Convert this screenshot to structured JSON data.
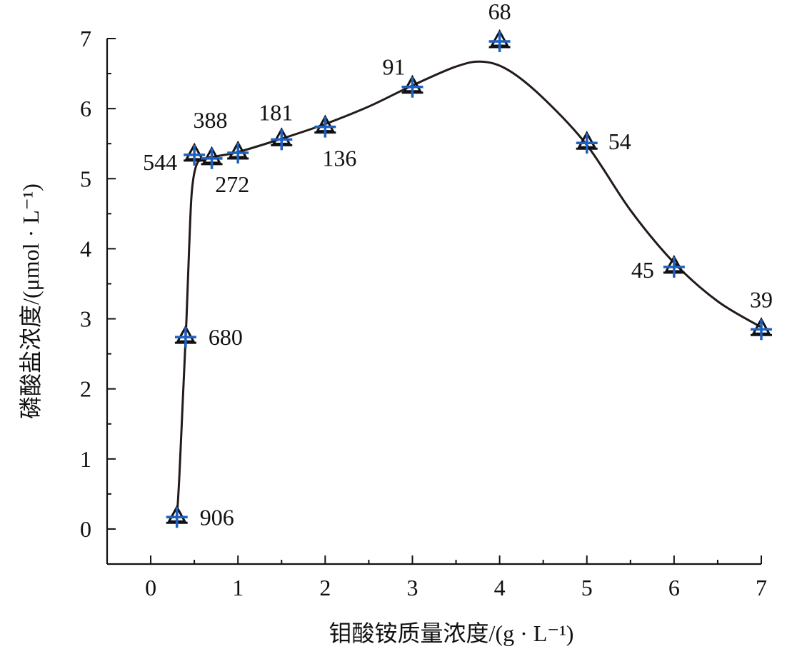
{
  "chart_data": {
    "type": "scatter",
    "xlabel": "钼酸铵质量浓度/(g · L⁻¹)",
    "ylabel": "磷酸盐浓度/(μmol · L⁻¹)",
    "xlim": [
      -0.5,
      7
    ],
    "ylim": [
      -0.5,
      7
    ],
    "x_ticks": [
      "0",
      "1",
      "2",
      "3",
      "4",
      "5",
      "6",
      "7"
    ],
    "y_ticks": [
      "0",
      "1",
      "2",
      "3",
      "4",
      "5",
      "6",
      "7"
    ],
    "grid": false,
    "legend": "none",
    "series": [
      {
        "marker_colors": [
          "#111111",
          "#1f5fbf"
        ],
        "line_color": "#231a1a",
        "points": [
          {
            "x": 0.3,
            "y": 0.18,
            "label": "906"
          },
          {
            "x": 0.4,
            "y": 2.75,
            "label": "680"
          },
          {
            "x": 0.5,
            "y": 5.35,
            "label": "544"
          },
          {
            "x": 0.7,
            "y": 5.3,
            "label": "388"
          },
          {
            "x": 1.0,
            "y": 5.38,
            "label": "272"
          },
          {
            "x": 1.5,
            "y": 5.57,
            "label": "181"
          },
          {
            "x": 2.0,
            "y": 5.75,
            "label": "136"
          },
          {
            "x": 3.0,
            "y": 6.32,
            "label": "91"
          },
          {
            "x": 4.0,
            "y": 6.97,
            "label": "68"
          },
          {
            "x": 5.0,
            "y": 5.52,
            "label": "54"
          },
          {
            "x": 6.0,
            "y": 3.75,
            "label": "45"
          },
          {
            "x": 7.0,
            "y": 2.86,
            "label": "39"
          }
        ]
      }
    ],
    "fit_curve": [
      [
        0.3,
        0.15
      ],
      [
        0.33,
        0.8
      ],
      [
        0.37,
        1.9
      ],
      [
        0.41,
        3.0
      ],
      [
        0.44,
        4.0
      ],
      [
        0.47,
        4.8
      ],
      [
        0.52,
        5.18
      ],
      [
        0.6,
        5.28
      ],
      [
        0.8,
        5.33
      ],
      [
        1.0,
        5.38
      ],
      [
        1.5,
        5.57
      ],
      [
        2.0,
        5.78
      ],
      [
        2.5,
        6.03
      ],
      [
        3.0,
        6.33
      ],
      [
        3.5,
        6.6
      ],
      [
        3.8,
        6.67
      ],
      [
        4.1,
        6.55
      ],
      [
        4.5,
        6.15
      ],
      [
        5.0,
        5.48
      ],
      [
        5.5,
        4.55
      ],
      [
        6.0,
        3.8
      ],
      [
        6.5,
        3.25
      ],
      [
        7.0,
        2.88
      ]
    ]
  }
}
